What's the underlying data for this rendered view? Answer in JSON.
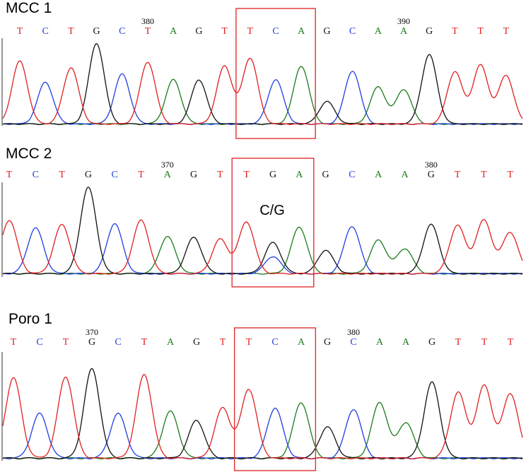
{
  "colors": {
    "A": "#1a7a1a",
    "C": "#1f3fe0",
    "G": "#111111",
    "T": "#e02020",
    "highlight": "#e03030"
  },
  "panels": [
    {
      "label": "MCC 1",
      "bases": [
        "T",
        "C",
        "T",
        "G",
        "C",
        "T",
        "A",
        "G",
        "T",
        "T",
        "C",
        "A",
        "G",
        "C",
        "A",
        "A",
        "G",
        "T",
        "T",
        "T"
      ],
      "position_labels": [
        {
          "text": "380",
          "base_index": 5
        },
        {
          "text": "390",
          "base_index": 15
        }
      ],
      "highlight_bases": [
        9,
        11
      ],
      "annotation": "",
      "peaks": [
        {
          "base": "T",
          "h": 0.78
        },
        {
          "base": "C",
          "h": 0.52
        },
        {
          "base": "T",
          "h": 0.7
        },
        {
          "base": "G",
          "h": 1.0
        },
        {
          "base": "C",
          "h": 0.62
        },
        {
          "base": "T",
          "h": 0.77
        },
        {
          "base": "A",
          "h": 0.55
        },
        {
          "base": "G",
          "h": 0.55
        },
        {
          "base": "T",
          "h": 0.72
        },
        {
          "base": "T",
          "h": 0.82
        },
        {
          "base": "C",
          "h": 0.55
        },
        {
          "base": "A",
          "h": 0.72
        },
        {
          "base": "G",
          "h": 0.28
        },
        {
          "base": "C",
          "h": 0.66
        },
        {
          "base": "A",
          "h": 0.46
        },
        {
          "base": "A",
          "h": 0.43
        },
        {
          "base": "G",
          "h": 0.86
        },
        {
          "base": "T",
          "h": 0.65
        },
        {
          "base": "T",
          "h": 0.73
        },
        {
          "base": "T",
          "h": 0.6
        }
      ]
    },
    {
      "label": "MCC 2",
      "bases": [
        "T",
        "C",
        "T",
        "G",
        "C",
        "T",
        "A",
        "G",
        "T",
        "T",
        "G",
        "A",
        "G",
        "C",
        "A",
        "A",
        "G",
        "T",
        "T",
        "T"
      ],
      "position_labels": [
        {
          "text": "370",
          "base_index": 6
        },
        {
          "text": "380",
          "base_index": 16
        }
      ],
      "highlight_bases": [
        9,
        11
      ],
      "annotation": "C/G",
      "peaks": [
        {
          "base": "T",
          "h": 0.62
        },
        {
          "base": "C",
          "h": 0.53
        },
        {
          "base": "T",
          "h": 0.57
        },
        {
          "base": "G",
          "h": 1.0
        },
        {
          "base": "C",
          "h": 0.58
        },
        {
          "base": "T",
          "h": 0.62
        },
        {
          "base": "A",
          "h": 0.43
        },
        {
          "base": "G",
          "h": 0.42
        },
        {
          "base": "T",
          "h": 0.4
        },
        {
          "base": "T",
          "h": 0.6
        },
        {
          "base": "G",
          "h": 0.36
        },
        {
          "base": "A",
          "h": 0.54
        },
        {
          "base": "G",
          "h": 0.27
        },
        {
          "base": "C",
          "h": 0.55
        },
        {
          "base": "A",
          "h": 0.39
        },
        {
          "base": "A",
          "h": 0.29
        },
        {
          "base": "G",
          "h": 0.57
        },
        {
          "base": "T",
          "h": 0.56
        },
        {
          "base": "T",
          "h": 0.62
        },
        {
          "base": "T",
          "h": 0.48
        }
      ],
      "extra_peaks": [
        {
          "base": "C",
          "at": 10,
          "h": 0.2
        }
      ]
    },
    {
      "label": "Poro 1",
      "bases": [
        "T",
        "C",
        "T",
        "G",
        "C",
        "T",
        "A",
        "G",
        "T",
        "T",
        "C",
        "A",
        "G",
        "C",
        "A",
        "A",
        "G",
        "T",
        "T",
        "T"
      ],
      "position_labels": [
        {
          "text": "370",
          "base_index": 3
        },
        {
          "text": "380",
          "base_index": 13
        }
      ],
      "highlight_bases": [
        9,
        11
      ],
      "annotation": "",
      "peaks": [
        {
          "base": "T",
          "h": 0.72
        },
        {
          "base": "C",
          "h": 0.4
        },
        {
          "base": "T",
          "h": 0.73
        },
        {
          "base": "G",
          "h": 0.8
        },
        {
          "base": "C",
          "h": 0.4
        },
        {
          "base": "T",
          "h": 0.75
        },
        {
          "base": "A",
          "h": 0.42
        },
        {
          "base": "G",
          "h": 0.34
        },
        {
          "base": "T",
          "h": 0.45
        },
        {
          "base": "T",
          "h": 0.62
        },
        {
          "base": "C",
          "h": 0.45
        },
        {
          "base": "A",
          "h": 0.5
        },
        {
          "base": "G",
          "h": 0.28
        },
        {
          "base": "C",
          "h": 0.44
        },
        {
          "base": "A",
          "h": 0.5
        },
        {
          "base": "A",
          "h": 0.32
        },
        {
          "base": "G",
          "h": 0.68
        },
        {
          "base": "T",
          "h": 0.59
        },
        {
          "base": "T",
          "h": 0.65
        },
        {
          "base": "T",
          "h": 0.58
        }
      ]
    }
  ]
}
